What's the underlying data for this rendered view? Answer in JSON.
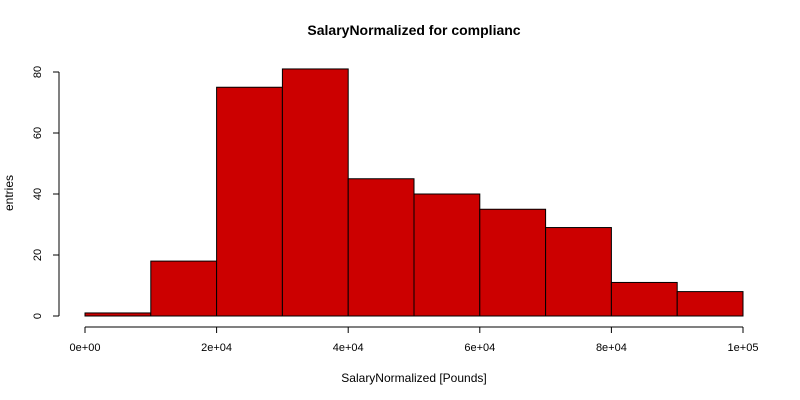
{
  "chart_data": {
    "type": "bar",
    "title": "SalaryNormalized for complianc",
    "xlabel": "SalaryNormalized [Pounds]",
    "ylabel": "entries",
    "bin_edges": [
      0,
      10000,
      20000,
      30000,
      40000,
      50000,
      60000,
      70000,
      80000,
      90000,
      100000
    ],
    "values": [
      1,
      18,
      75,
      81,
      45,
      40,
      35,
      29,
      11,
      8
    ],
    "xlim": [
      0,
      100000
    ],
    "ylim": [
      0,
      80
    ],
    "x_ticks": [
      {
        "value": 0,
        "label": "0e+00"
      },
      {
        "value": 20000,
        "label": "2e+04"
      },
      {
        "value": 40000,
        "label": "4e+04"
      },
      {
        "value": 60000,
        "label": "6e+04"
      },
      {
        "value": 80000,
        "label": "8e+04"
      },
      {
        "value": 100000,
        "label": "1e+05"
      }
    ],
    "y_ticks": [
      {
        "value": 0,
        "label": "0"
      },
      {
        "value": 20,
        "label": "20"
      },
      {
        "value": 40,
        "label": "40"
      },
      {
        "value": 60,
        "label": "60"
      },
      {
        "value": 80,
        "label": "80"
      }
    ],
    "bar_color": "#cc0000",
    "grid": false
  }
}
